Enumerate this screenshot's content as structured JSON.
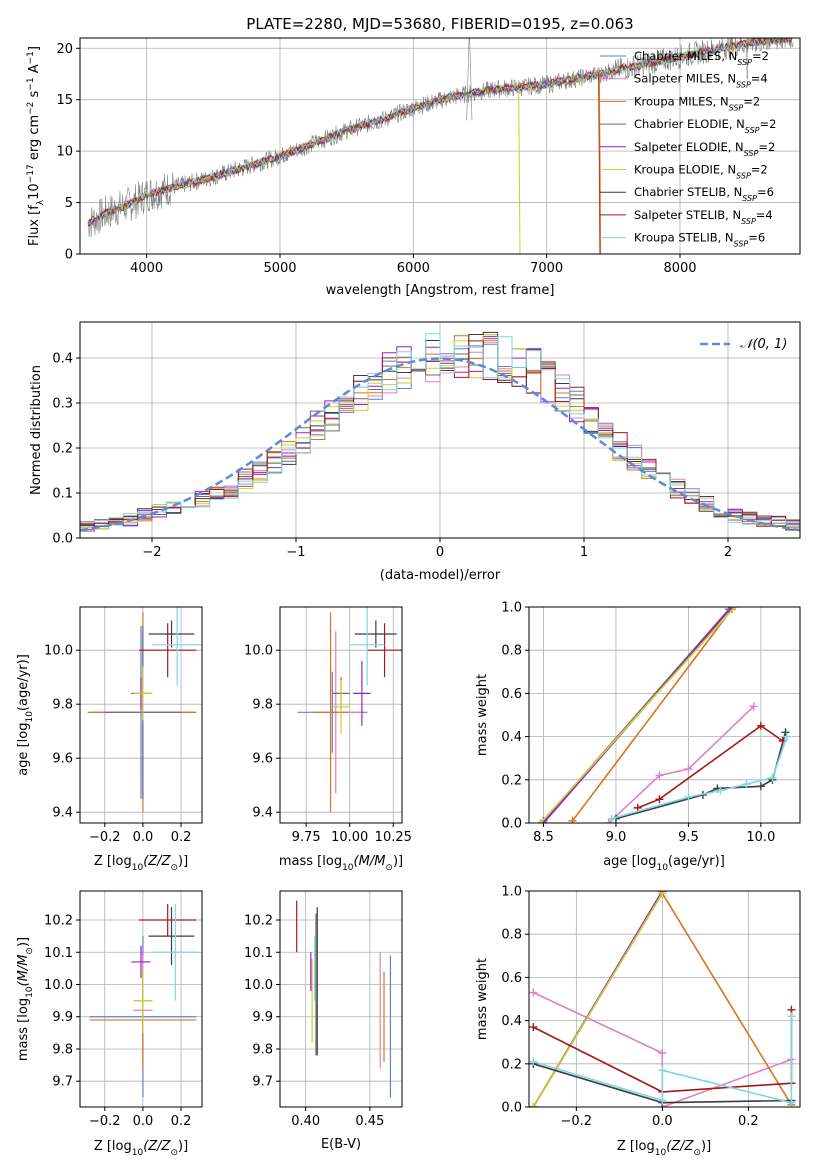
{
  "title": "PLATE=2280, MJD=53680, FIBERID=0195, z=0.063",
  "colors": {
    "chabrier_miles": "#5b7fd6",
    "salpeter_miles": "#e27fbf",
    "kroupa_miles": "#d9731f",
    "chabrier_elodie": "#6e6e6e",
    "salpeter_elodie": "#9b1fc4",
    "kroupa_elodie": "#cad22c",
    "chabrier_stelib": "#3d3d3d",
    "salpeter_stelib": "#a81818",
    "kroupa_stelib": "#7fd6e2",
    "data": "#808080",
    "gaussian": "#5b8bd9",
    "grid": "#b0b0b0"
  },
  "chart_data": [
    {
      "type": "line",
      "name": "spectrum",
      "xlabel": "wavelength [Angstrom, rest frame]",
      "ylabel": "Flux [f_λ 10^-17 erg cm^-2 s^-1 A^-1]",
      "ylabel_parts": [
        "Flux [f",
        "λ",
        "10",
        "−17",
        " erg cm",
        "−2",
        " s",
        "−1",
        " A",
        "−1",
        "]"
      ],
      "xlim": [
        3500,
        8900
      ],
      "ylim": [
        0,
        21
      ],
      "xticks": [
        4000,
        5000,
        6000,
        7000,
        8000
      ],
      "yticks": [
        0,
        5,
        10,
        15,
        20
      ],
      "legend": [
        {
          "main": "Chabrier MILES, N",
          "sub": "SSP",
          "tail": "=2"
        },
        {
          "main": "Salpeter MILES, N",
          "sub": "SSP",
          "tail": "=4"
        },
        {
          "main": "Kroupa MILES, N",
          "sub": "SSP",
          "tail": "=2"
        },
        {
          "main": "Chabrier ELODIE, N",
          "sub": "SSP",
          "tail": "=2"
        },
        {
          "main": "Salpeter ELODIE, N",
          "sub": "SSP",
          "tail": "=2"
        },
        {
          "main": "Kroupa ELODIE, N",
          "sub": "SSP",
          "tail": "=2"
        },
        {
          "main": "Chabrier STELIB, N",
          "sub": "SSP",
          "tail": "=6"
        },
        {
          "main": "Salpeter STELIB, N",
          "sub": "SSP",
          "tail": "=4"
        },
        {
          "main": "Kroupa STELIB, N",
          "sub": "SSP",
          "tail": "=6"
        }
      ],
      "legend_position": "right",
      "continuum_points": [
        [
          3560,
          3
        ],
        [
          3700,
          4
        ],
        [
          3900,
          5
        ],
        [
          4000,
          5.8
        ],
        [
          4200,
          6.5
        ],
        [
          4500,
          7.5
        ],
        [
          4800,
          8.7
        ],
        [
          5000,
          9.5
        ],
        [
          5200,
          10.5
        ],
        [
          5500,
          12
        ],
        [
          5800,
          13.2
        ],
        [
          6000,
          14.2
        ],
        [
          6300,
          15.3
        ],
        [
          6600,
          16
        ],
        [
          6800,
          16.2
        ],
        [
          7000,
          16.5
        ],
        [
          7400,
          17.5
        ],
        [
          8000,
          19.2
        ],
        [
          8500,
          20.5
        ],
        [
          8850,
          21
        ]
      ]
    },
    {
      "type": "bar",
      "name": "residual histogram",
      "xlabel": "(data-model)/error",
      "ylabel": "Normed distribution",
      "xlim": [
        -2.5,
        2.5
      ],
      "ylim": [
        0,
        0.48
      ],
      "xticks": [
        -2,
        -1,
        0,
        1,
        2
      ],
      "xticklabels": [
        "−2",
        "−1",
        "0",
        "1",
        "2"
      ],
      "yticks": [
        0.0,
        0.1,
        0.2,
        0.3,
        0.4
      ],
      "yticklabels": [
        "0.0",
        "0.1",
        "0.2",
        "0.3",
        "0.4"
      ],
      "bin_width": 0.1,
      "bin_start": -2.5,
      "shared_values": [
        0.025,
        0.03,
        0.035,
        0.04,
        0.05,
        0.06,
        0.065,
        0.075,
        0.085,
        0.1,
        0.11,
        0.13,
        0.145,
        0.165,
        0.19,
        0.215,
        0.245,
        0.27,
        0.3,
        0.32,
        0.345,
        0.365,
        0.38,
        0.39,
        0.4,
        0.405,
        0.41,
        0.41,
        0.405,
        0.395,
        0.385,
        0.37,
        0.345,
        0.32,
        0.295,
        0.265,
        0.235,
        0.205,
        0.18,
        0.155,
        0.13,
        0.11,
        0.09,
        0.075,
        0.06,
        0.05,
        0.045,
        0.04,
        0.035,
        0.03
      ],
      "legend": "𝒩(0, 1)",
      "legend_position": "top-right",
      "gaussian": {
        "mu": 0,
        "sigma": 1
      }
    },
    {
      "type": "scatter",
      "name": "age vs Z",
      "xlabel_parts": [
        "Z [log",
        "10",
        "(Z/Z",
        "⊙",
        ")]"
      ],
      "ylabel_parts": [
        "age  [log",
        "10",
        "(age/yr)]"
      ],
      "xlim": [
        -0.33,
        0.31
      ],
      "ylim": [
        9.36,
        10.16
      ],
      "xticks": [
        -0.2,
        0.0,
        0.2
      ],
      "xticklabels": [
        "−0.2",
        "0.0",
        "0.2"
      ],
      "yticks": [
        9.4,
        9.6,
        9.8,
        10.0
      ],
      "yticklabels": [
        "9.4",
        "9.6",
        "9.8",
        "10.0"
      ],
      "points": [
        {
          "model": "chabrier_miles",
          "x": -0.01,
          "xerr": 0.28,
          "y": 9.77,
          "yerr": 0.32
        },
        {
          "model": "salpeter_miles",
          "x": 0.0,
          "xerr": 0.28,
          "y": 9.77,
          "yerr": 0.3
        },
        {
          "model": "kroupa_miles",
          "x": 0.0,
          "xerr": 0.28,
          "y": 9.77,
          "yerr": 0.37
        },
        {
          "model": "chabrier_elodie",
          "x": 0.0,
          "xerr": 0.2,
          "y": 9.77,
          "yerr": 0.32
        },
        {
          "model": "salpeter_elodie",
          "x": -0.01,
          "xerr": 0.05,
          "y": 9.84,
          "yerr": 0.06
        },
        {
          "model": "kroupa_elodie",
          "x": 0.0,
          "xerr": 0.05,
          "y": 9.84,
          "yerr": 0.1
        },
        {
          "model": "chabrier_stelib",
          "x": 0.15,
          "xerr": 0.12,
          "y": 10.06,
          "yerr": 0.05
        },
        {
          "model": "salpeter_stelib",
          "x": 0.13,
          "xerr": 0.15,
          "y": 10.0,
          "yerr": 0.1
        },
        {
          "model": "kroupa_stelib",
          "x": 0.18,
          "xerr": 0.13,
          "y": 10.02,
          "yerr": 0.15
        }
      ]
    },
    {
      "type": "scatter",
      "name": "age vs mass",
      "xlabel_parts": [
        "mass [log",
        "10",
        "(M/M",
        "⊙",
        ")]"
      ],
      "xlim": [
        9.6,
        10.3
      ],
      "ylim": [
        9.36,
        10.16
      ],
      "xticks": [
        9.75,
        10.0,
        10.25
      ],
      "xticklabels": [
        "9.75",
        "10.00",
        "10.25"
      ],
      "yticks": [
        9.4,
        9.6,
        9.8,
        10.0
      ],
      "yticklabels": [
        "9.4",
        "9.6",
        "9.8",
        "10.0"
      ],
      "points": [
        {
          "model": "chabrier_miles",
          "x": 9.9,
          "xerr": 0.2,
          "y": 9.77,
          "yerr": 0.15
        },
        {
          "model": "salpeter_miles",
          "x": 9.92,
          "xerr": 0.15,
          "y": 9.77,
          "yerr": 0.3
        },
        {
          "model": "kroupa_miles",
          "x": 9.89,
          "xerr": 0.1,
          "y": 9.77,
          "yerr": 0.37
        },
        {
          "model": "chabrier_elodie",
          "x": 9.95,
          "xerr": 0.05,
          "y": 9.84,
          "yerr": 0.06
        },
        {
          "model": "salpeter_elodie",
          "x": 10.07,
          "xerr": 0.05,
          "y": 9.84,
          "yerr": 0.12
        },
        {
          "model": "kroupa_elodie",
          "x": 9.95,
          "xerr": 0.05,
          "y": 9.79,
          "yerr": 0.1
        },
        {
          "model": "chabrier_stelib",
          "x": 10.15,
          "xerr": 0.12,
          "y": 10.06,
          "yerr": 0.05
        },
        {
          "model": "salpeter_stelib",
          "x": 10.2,
          "xerr": 0.1,
          "y": 10.0,
          "yerr": 0.1
        },
        {
          "model": "kroupa_stelib",
          "x": 10.1,
          "xerr": 0.1,
          "y": 10.02,
          "yerr": 0.15
        }
      ]
    },
    {
      "type": "line",
      "name": "mass weight vs age",
      "xlabel_parts": [
        "age  [log",
        "10",
        "(age/yr)]"
      ],
      "ylabel": "mass weight",
      "xlim": [
        8.4,
        10.27
      ],
      "ylim": [
        0,
        1
      ],
      "xticks": [
        8.5,
        9.0,
        9.5,
        10.0
      ],
      "xticklabels": [
        "8.5",
        "9.0",
        "9.5",
        "10.0"
      ],
      "yticks": [
        0.0,
        0.2,
        0.4,
        0.6,
        0.8,
        1.0
      ],
      "yticklabels": [
        "0.0",
        "0.2",
        "0.4",
        "0.6",
        "0.8",
        "1.0"
      ],
      "series": [
        {
          "model": "chabrier_miles",
          "points": [
            [
              8.5,
              0.0
            ],
            [
              9.8,
              1.0
            ]
          ]
        },
        {
          "model": "salpeter_miles",
          "points": [
            [
              8.95,
              0.0
            ],
            [
              9.3,
              0.22
            ],
            [
              9.5,
              0.25
            ],
            [
              9.95,
              0.54
            ]
          ]
        },
        {
          "model": "kroupa_miles",
          "points": [
            [
              8.7,
              0.01
            ],
            [
              9.8,
              0.99
            ]
          ]
        },
        {
          "model": "chabrier_elodie",
          "points": [
            [
              8.5,
              0.01
            ],
            [
              9.78,
              0.99
            ]
          ]
        },
        {
          "model": "salpeter_elodie",
          "points": [
            [
              8.5,
              0.0
            ],
            [
              9.8,
              1.0
            ]
          ]
        },
        {
          "model": "kroupa_elodie",
          "points": [
            [
              8.48,
              0.0
            ],
            [
              9.82,
              1.0
            ]
          ]
        },
        {
          "model": "chabrier_stelib",
          "points": [
            [
              9.0,
              0.02
            ],
            [
              9.6,
              0.13
            ],
            [
              9.7,
              0.16
            ],
            [
              10.0,
              0.17
            ],
            [
              10.08,
              0.2
            ],
            [
              10.17,
              0.42
            ]
          ]
        },
        {
          "model": "salpeter_stelib",
          "points": [
            [
              9.15,
              0.07
            ],
            [
              9.3,
              0.11
            ],
            [
              10.0,
              0.45
            ],
            [
              10.15,
              0.38
            ]
          ]
        },
        {
          "model": "kroupa_stelib",
          "points": [
            [
              8.97,
              0.02
            ],
            [
              9.5,
              0.12
            ],
            [
              9.72,
              0.15
            ],
            [
              9.9,
              0.18
            ],
            [
              10.08,
              0.21
            ],
            [
              10.18,
              0.4
            ]
          ]
        }
      ]
    },
    {
      "type": "scatter",
      "name": "mass vs Z",
      "xlabel_parts": [
        "Z [log",
        "10",
        "(Z/Z",
        "⊙",
        ")]"
      ],
      "ylabel_parts": [
        "mass [log",
        "10",
        "(M/M",
        "⊙",
        ")]"
      ],
      "xlim": [
        -0.33,
        0.31
      ],
      "ylim": [
        9.62,
        10.29
      ],
      "xticks": [
        -0.2,
        0.0,
        0.2
      ],
      "xticklabels": [
        "−0.2",
        "0.0",
        "0.2"
      ],
      "yticks": [
        9.7,
        9.8,
        9.9,
        10.0,
        10.1,
        10.2
      ],
      "yticklabels": [
        "9.7",
        "9.8",
        "9.9",
        "10.0",
        "10.1",
        "10.2"
      ],
      "points": [
        {
          "model": "chabrier_miles",
          "x": 0.0,
          "xerr": 0.28,
          "y": 9.9,
          "yerr": 0.25
        },
        {
          "model": "salpeter_miles",
          "x": 0.0,
          "xerr": 0.05,
          "y": 9.92,
          "yerr": 0.17
        },
        {
          "model": "kroupa_miles",
          "x": 0.0,
          "xerr": 0.28,
          "y": 9.89,
          "yerr": 0.15
        },
        {
          "model": "chabrier_elodie",
          "x": 0.0,
          "xerr": 0.05,
          "y": 9.95,
          "yerr": 0.1
        },
        {
          "model": "salpeter_elodie",
          "x": -0.01,
          "xerr": 0.05,
          "y": 10.07,
          "yerr": 0.05
        },
        {
          "model": "kroupa_elodie",
          "x": 0.0,
          "xerr": 0.05,
          "y": 9.95,
          "yerr": 0.1
        },
        {
          "model": "chabrier_stelib",
          "x": 0.15,
          "xerr": 0.12,
          "y": 10.15,
          "yerr": 0.09
        },
        {
          "model": "salpeter_stelib",
          "x": 0.13,
          "xerr": 0.15,
          "y": 10.2,
          "yerr": 0.05
        },
        {
          "model": "kroupa_stelib",
          "x": 0.17,
          "xerr": 0.12,
          "y": 10.1,
          "yerr": 0.15
        }
      ]
    },
    {
      "type": "scatter",
      "name": "mass vs E(B-V)",
      "xlabel": "E(B-V)",
      "xlim": [
        0.38,
        0.475
      ],
      "ylim": [
        9.62,
        10.29
      ],
      "xticks": [
        0.4,
        0.45
      ],
      "xticklabels": [
        "0.40",
        "0.45"
      ],
      "yticks": [
        9.7,
        9.8,
        9.9,
        10.0,
        10.1,
        10.2
      ],
      "yticklabels": [
        "9.7",
        "9.8",
        "9.9",
        "10.0",
        "10.1",
        "10.2"
      ],
      "points": [
        {
          "model": "chabrier_miles",
          "x": 0.466,
          "y": 9.87,
          "yerr": 0.22
        },
        {
          "model": "salpeter_miles",
          "x": 0.458,
          "y": 9.92,
          "yerr": 0.18
        },
        {
          "model": "kroupa_miles",
          "x": 0.461,
          "y": 9.9,
          "yerr": 0.14
        },
        {
          "model": "chabrier_elodie",
          "x": 0.408,
          "y": 10.0,
          "yerr": 0.22
        },
        {
          "model": "salpeter_elodie",
          "x": 0.404,
          "y": 10.04,
          "yerr": 0.06
        },
        {
          "model": "kroupa_elodie",
          "x": 0.405,
          "y": 9.95,
          "yerr": 0.13
        },
        {
          "model": "chabrier_stelib",
          "x": 0.409,
          "y": 10.01,
          "yerr": 0.23
        },
        {
          "model": "salpeter_stelib",
          "x": 0.393,
          "y": 10.18,
          "yerr": 0.08
        },
        {
          "model": "kroupa_stelib",
          "x": 0.407,
          "y": 10.05,
          "yerr": 0.1
        }
      ]
    },
    {
      "type": "line",
      "name": "mass weight vs Z",
      "xlabel_parts": [
        "Z [log",
        "10",
        "(Z/Z",
        "⊙",
        ")]"
      ],
      "ylabel": "mass weight",
      "xlim": [
        -0.31,
        0.32
      ],
      "ylim": [
        0,
        1
      ],
      "xticks": [
        -0.2,
        0.0,
        0.2
      ],
      "xticklabels": [
        "−0.2",
        "0.0",
        "0.2"
      ],
      "yticks": [
        0.0,
        0.2,
        0.4,
        0.6,
        0.8,
        1.0
      ],
      "yticklabels": [
        "0.0",
        "0.2",
        "0.4",
        "0.6",
        "0.8",
        "1.0"
      ],
      "series": [
        {
          "model": "chabrier_miles",
          "points": [
            [
              -0.3,
              0.0
            ],
            [
              0.0,
              1.0
            ]
          ]
        },
        {
          "model": "salpeter_miles",
          "points": [
            [
              -0.3,
              0.53
            ],
            [
              0.0,
              0.25
            ],
            [
              0.0,
              0.0
            ],
            [
              0.3,
              0.22
            ]
          ]
        },
        {
          "model": "kroupa_miles",
          "points": [
            [
              -0.3,
              0.0
            ],
            [
              0.0,
              0.99
            ],
            [
              0.3,
              0.01
            ]
          ]
        },
        {
          "model": "chabrier_elodie",
          "points": [
            [
              -0.3,
              0.0
            ],
            [
              0.0,
              0.99
            ]
          ]
        },
        {
          "model": "salpeter_elodie",
          "points": [
            [
              -0.3,
              0.0
            ],
            [
              0.0,
              1.0
            ]
          ]
        },
        {
          "model": "kroupa_elodie",
          "points": [
            [
              -0.3,
              0.0
            ],
            [
              0.0,
              0.99
            ]
          ]
        },
        {
          "model": "chabrier_stelib",
          "points": [
            [
              -0.3,
              0.2
            ],
            [
              0.0,
              0.02
            ],
            [
              0.3,
              0.03
            ]
          ]
        },
        {
          "model": "salpeter_stelib",
          "points": [
            [
              -0.3,
              0.37
            ],
            [
              0.0,
              0.07
            ],
            [
              0.3,
              0.11
            ],
            [
              0.3,
              0.45
            ]
          ]
        },
        {
          "model": "kroupa_stelib",
          "points": [
            [
              -0.3,
              0.21
            ],
            [
              0.0,
              0.03
            ],
            [
              0.0,
              0.17
            ],
            [
              0.3,
              0.02
            ],
            [
              0.3,
              0.42
            ]
          ]
        }
      ]
    }
  ]
}
